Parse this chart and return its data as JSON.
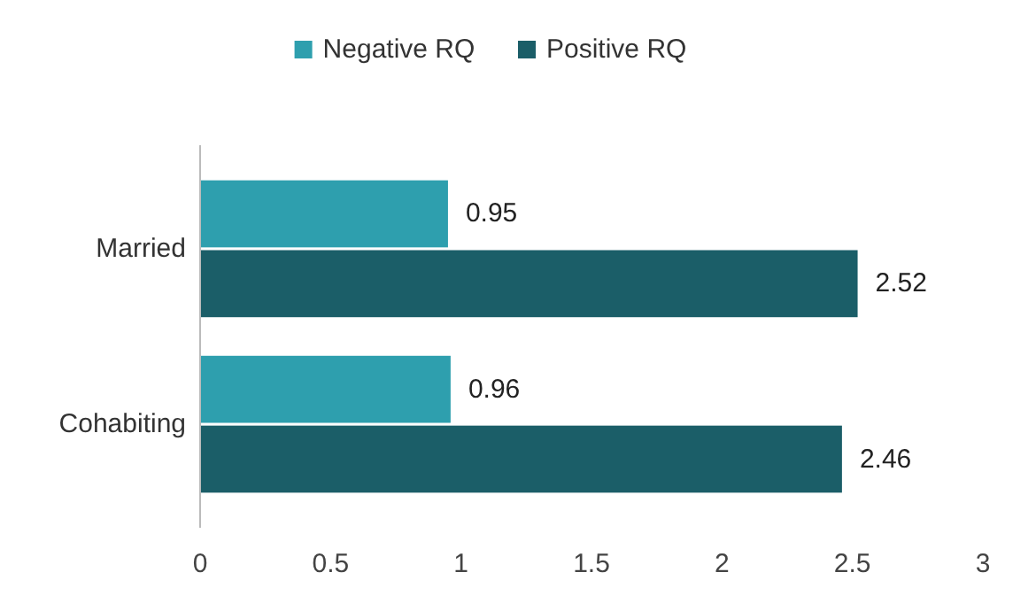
{
  "chart_data": {
    "type": "bar",
    "orientation": "horizontal",
    "categories": [
      "Married",
      "Cohabiting"
    ],
    "series": [
      {
        "name": "Negative RQ",
        "color": "#2e9fae",
        "values": [
          0.95,
          0.96
        ]
      },
      {
        "name": "Positive RQ",
        "color": "#1b5e68",
        "values": [
          2.52,
          2.46
        ]
      }
    ],
    "xlim": [
      0,
      3
    ],
    "xticks": [
      0,
      0.5,
      1,
      1.5,
      2,
      2.5,
      3
    ],
    "data_labels": true,
    "legend": "top",
    "grid": false
  }
}
